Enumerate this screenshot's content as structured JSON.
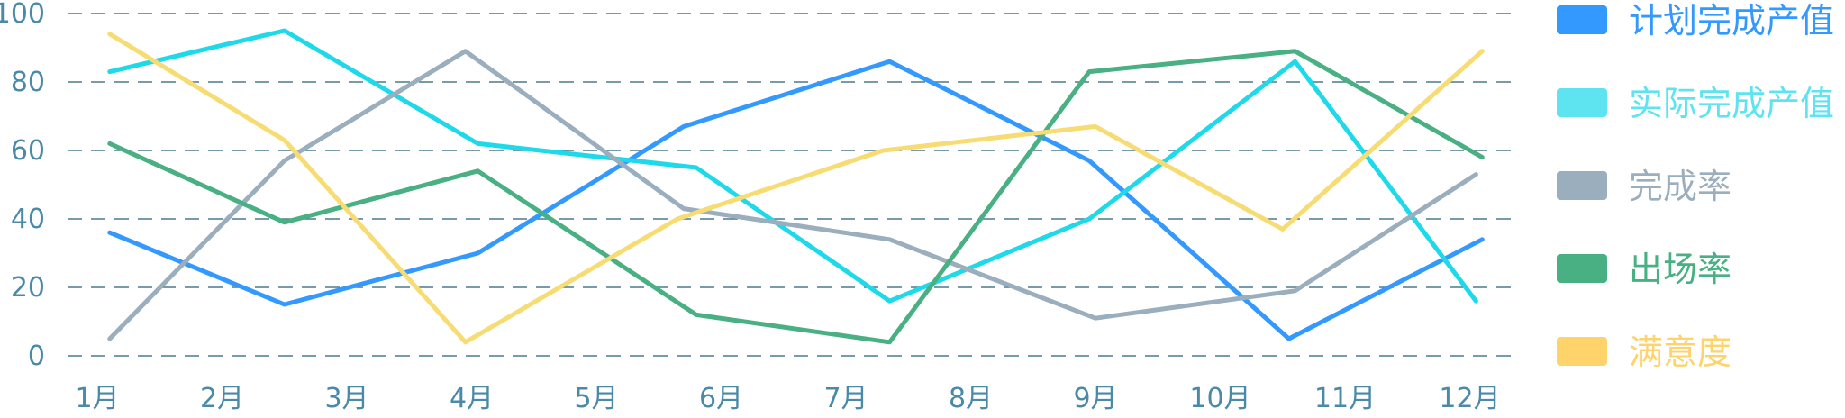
{
  "chart_data": {
    "type": "line",
    "title": "",
    "xlabel": "",
    "ylabel": "",
    "ylim": [
      0,
      100
    ],
    "yticks": [
      0,
      20,
      40,
      60,
      80,
      100
    ],
    "grid": true,
    "legend_position": "right",
    "categories": [
      "1月",
      "2月",
      "3月",
      "4月",
      "5月",
      "6月",
      "7月",
      "8月",
      "9月",
      "10月",
      "11月",
      "12月"
    ],
    "series": [
      {
        "name": "计划完成产值",
        "color": "#3399ff",
        "x": [
          "1月",
          "2月",
          "4月",
          "5月",
          "7月",
          "9月",
          "11月",
          "12月"
        ],
        "values": [
          36,
          15,
          30,
          67,
          86,
          57,
          5,
          34
        ]
      },
      {
        "name": "实际完成产值",
        "color": "#1ed9ea",
        "x": [
          "1月",
          "2月",
          "4月",
          "6月",
          "7月",
          "9月",
          "10月",
          "12月"
        ],
        "values": [
          83,
          95,
          62,
          55,
          16,
          40,
          86,
          16
        ]
      },
      {
        "name": "完成率",
        "color": "#9aaebd",
        "x": [
          "1月",
          "2月",
          "4月",
          "5月",
          "7月",
          "9月",
          "11月",
          "12月"
        ],
        "values": [
          5,
          57,
          89,
          43,
          34,
          11,
          19,
          53
        ]
      },
      {
        "name": "出场率",
        "color": "#49b083",
        "x": [
          "1月",
          "2月",
          "4月",
          "6月",
          "7月",
          "9月",
          "11月",
          "12月"
        ],
        "values": [
          62,
          39,
          54,
          12,
          4,
          83,
          89,
          58
        ]
      },
      {
        "name": "满意度",
        "color": "#f6dc72",
        "x": [
          "1月",
          "2月",
          "4月",
          "5月",
          "7月",
          "9月",
          "10月",
          "12月"
        ],
        "values": [
          94,
          63,
          4,
          40,
          60,
          67,
          37,
          89
        ]
      }
    ],
    "series_x_positions": [
      [
        0.1,
        1.5,
        3.05,
        4.7,
        6.35,
        7.95,
        9.55,
        11.1
      ],
      [
        0.1,
        1.5,
        3.05,
        4.8,
        6.35,
        7.95,
        9.6,
        11.05
      ],
      [
        0.1,
        1.5,
        2.95,
        4.7,
        6.35,
        8.0,
        9.6,
        11.05
      ],
      [
        0.1,
        1.5,
        3.05,
        4.8,
        6.35,
        7.95,
        9.6,
        11.1
      ],
      [
        0.1,
        1.5,
        2.95,
        4.65,
        6.3,
        8.0,
        9.5,
        11.1
      ]
    ],
    "legend": [
      {
        "name": "计划完成产值",
        "swatch": "#3399ff",
        "text_color": "#3399ff"
      },
      {
        "name": "实际完成产值",
        "swatch": "#5ee3f0",
        "text_color": "#5ee3f0"
      },
      {
        "name": "完成率",
        "swatch": "#9aaebd",
        "text_color": "#9aaebd"
      },
      {
        "name": "出场率",
        "swatch": "#49b083",
        "text_color": "#49b083"
      },
      {
        "name": "满意度",
        "swatch": "#ffd36b",
        "text_color": "#ffd36b"
      }
    ],
    "colors": {
      "axis_text": "#4a8aa8",
      "grid": "#4a7a8c"
    }
  }
}
